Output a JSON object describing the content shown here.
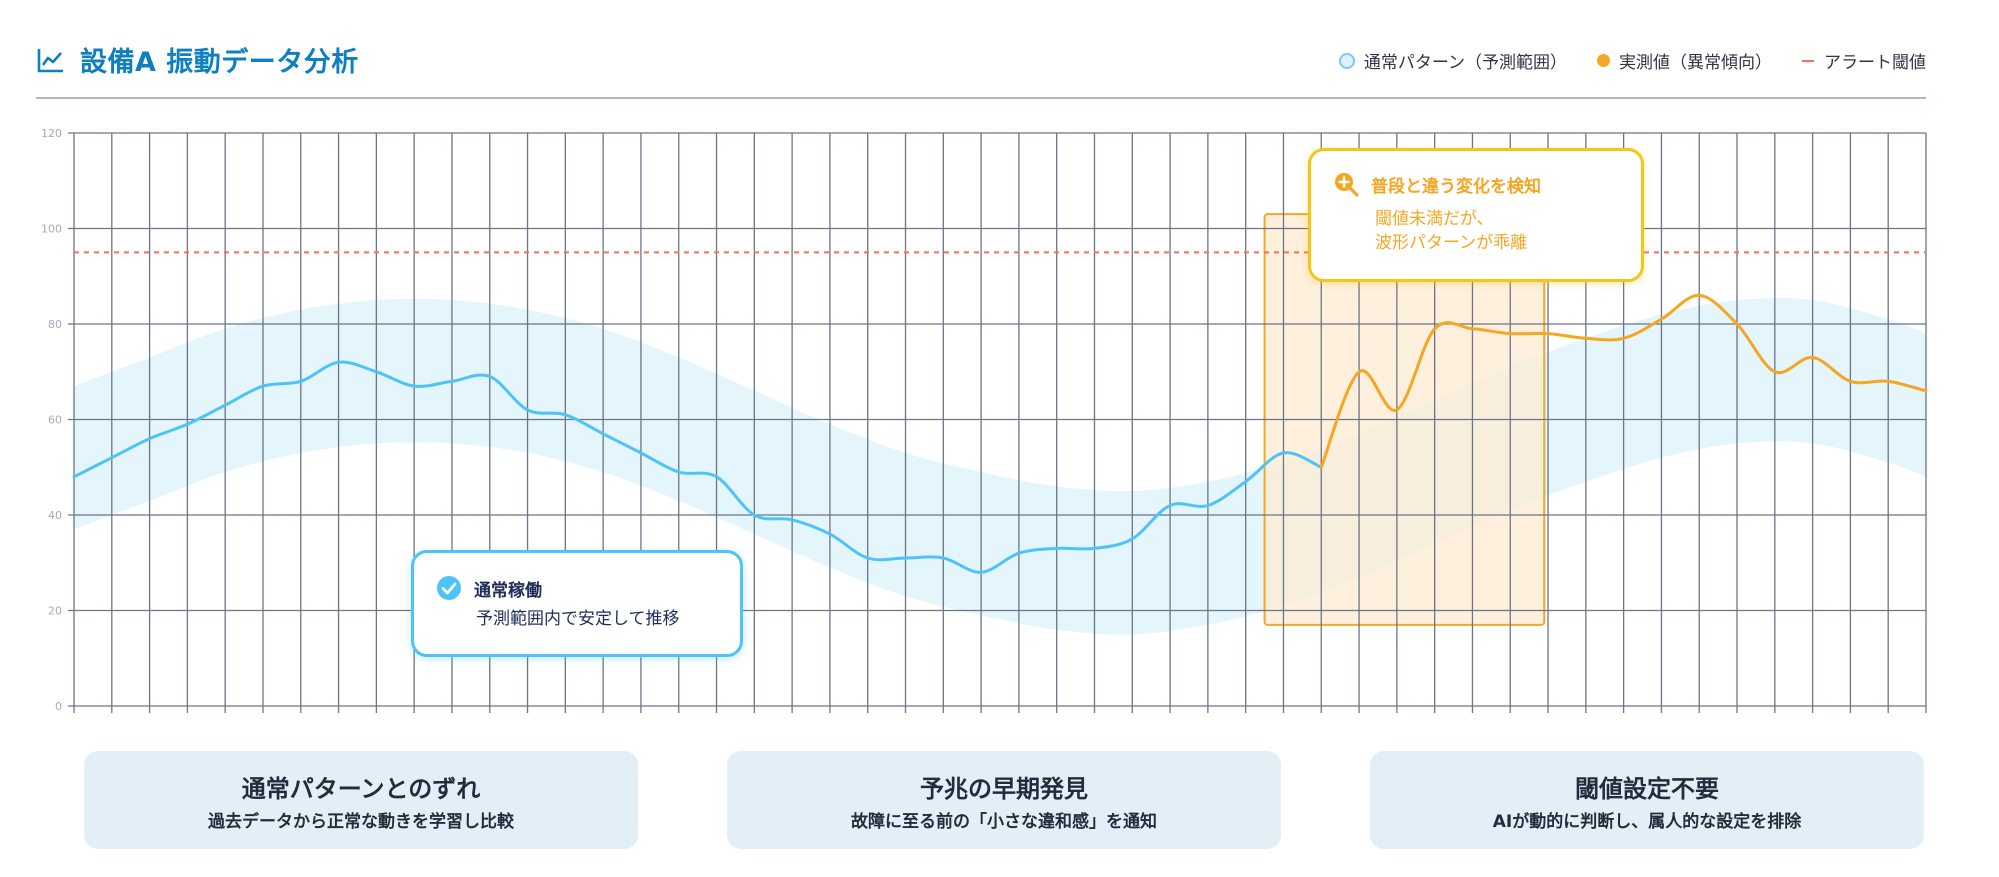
{
  "header": {
    "title": "設備A 振動データ分析",
    "icon": "line-chart-icon"
  },
  "legend": {
    "items": [
      {
        "label": "通常パターン（予測範囲）",
        "marker": "light-blue-circle"
      },
      {
        "label": "実測値（異常傾向）",
        "marker": "orange-dot"
      },
      {
        "label": "アラート閾値",
        "marker": "red-dash"
      }
    ]
  },
  "callouts": {
    "normal": {
      "title": "通常稼働",
      "body": "予測範囲内で安定して推移",
      "icon": "check-circle-icon"
    },
    "anomaly": {
      "title": "普段と違う変化を検知",
      "body_line1": "閾値未満だが、",
      "body_line2": "波形パターンが乖離",
      "icon": "zoom-in-icon"
    }
  },
  "cards": [
    {
      "title": "通常パターンとのずれ",
      "subtitle": "過去データから正常な動きを学習し比較"
    },
    {
      "title": "予兆の早期発見",
      "subtitle": "故障に至る前の「小さな違和感」を通知"
    },
    {
      "title": "閾値設定不要",
      "subtitle": "AIが動的に判断し、属人的な設定を排除"
    }
  ],
  "colors": {
    "title": "#0e7fc0",
    "actual_normal": "#4fc3f7",
    "actual_anomaly": "#f5a623",
    "band": "#e3f4fc",
    "alert": "#ff6b5a",
    "highlight_fill": "#fdebd0",
    "highlight_border": "#f5a623",
    "grid": "#6b7488"
  },
  "chart_data": {
    "type": "line",
    "title": "",
    "xlabel": "",
    "ylabel": "",
    "ylim": [
      0,
      120
    ],
    "yticks": [
      0,
      20,
      40,
      60,
      80,
      100,
      120
    ],
    "xlim": [
      0,
      49
    ],
    "alert_threshold": 95,
    "highlight_region": {
      "x": [
        31.5,
        38.9
      ],
      "y": [
        17,
        103
      ]
    },
    "band": {
      "name": "通常パターン（予測範囲）",
      "x": [
        0,
        2,
        4,
        6,
        8,
        10,
        12,
        14,
        16,
        18,
        20,
        22,
        24,
        26,
        28,
        30,
        32,
        34,
        36,
        38,
        40,
        42,
        44,
        46,
        48,
        49
      ],
      "center": [
        52,
        58,
        64,
        68,
        70,
        70,
        68,
        64,
        58,
        51,
        44,
        38,
        34,
        31,
        30,
        32,
        36,
        42,
        49,
        56,
        62,
        67,
        70,
        70,
        66,
        63
      ],
      "half_width": 15
    },
    "series": [
      {
        "name": "実測値（異常傾向）",
        "x": [
          0,
          1,
          2,
          3,
          4,
          5,
          6,
          7,
          8,
          9,
          10,
          11,
          12,
          13,
          14,
          15,
          16,
          17,
          18,
          19,
          20,
          21,
          22,
          23,
          24,
          25,
          26,
          27,
          28,
          29,
          30,
          31,
          32,
          33,
          34,
          35,
          36,
          37,
          38,
          39,
          40,
          41,
          42,
          43,
          44,
          45,
          46,
          47,
          48,
          49
        ],
        "values": [
          48,
          52,
          56,
          59,
          63,
          67,
          68,
          72,
          70,
          67,
          68,
          69,
          62,
          61,
          57,
          53,
          49,
          48,
          40,
          39,
          36,
          31,
          31,
          31,
          28,
          32,
          33,
          33,
          35,
          42,
          42,
          47,
          53,
          50,
          70,
          62,
          79,
          79,
          78,
          78,
          77,
          77,
          81,
          86,
          80,
          70,
          73,
          68,
          68,
          66
        ],
        "anomaly_start_index": 33
      }
    ]
  }
}
